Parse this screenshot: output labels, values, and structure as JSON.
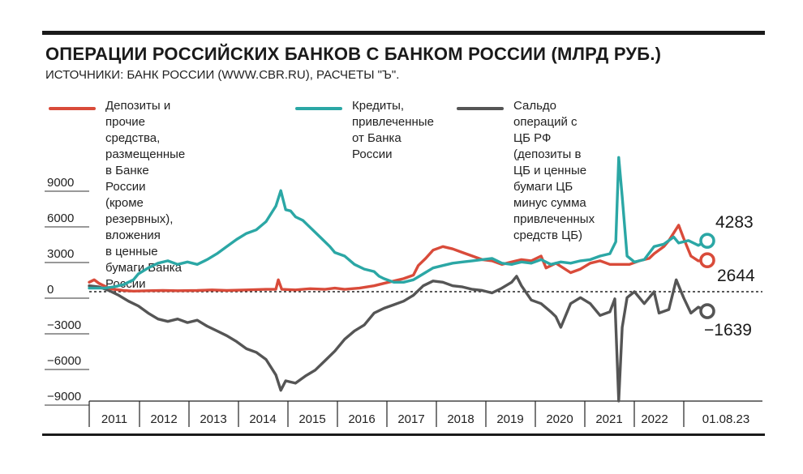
{
  "header": {
    "title": "ОПЕРАЦИИ РОССИЙСКИХ БАНКОВ С БАНКОМ РОССИИ (МЛРД РУБ.)",
    "subtitle": "ИСТОЧНИКИ: БАНК РОССИИ (WWW.CBR.RU), РАСЧЕТЫ \"Ъ\"."
  },
  "chart_data": {
    "type": "line",
    "title": "ОПЕРАЦИИ РОССИЙСКИХ БАНКОВ С БАНКОМ РОССИИ (МЛРД РУБ.)",
    "xlabel": "",
    "ylabel": "",
    "x_range": [
      2011.0,
      2023.583
    ],
    "ylim": [
      -10000,
      10500
    ],
    "y_ticks": [
      9000,
      6000,
      3000,
      0,
      -3000,
      -6000,
      -9000
    ],
    "y_tick_labels": [
      "9000",
      "6000",
      "3000",
      "0",
      "−3000",
      "−6000",
      "−9000"
    ],
    "x_tick_labels": [
      "2011",
      "2012",
      "2013",
      "2014",
      "2015",
      "2016",
      "2017",
      "2018",
      "2019",
      "2020",
      "2021",
      "2022",
      "01.08.23"
    ],
    "grid": false,
    "legend_position": "top",
    "series": [
      {
        "name": "Депозиты и прочие средства, размещенные в Банке России (кроме резервных), вложения в ценные бумаги Банка России",
        "color": "#d94b3a",
        "end_label": "2644",
        "points": [
          [
            2011.0,
            800
          ],
          [
            2011.1,
            1000
          ],
          [
            2011.2,
            700
          ],
          [
            2011.3,
            500
          ],
          [
            2011.4,
            300
          ],
          [
            2011.5,
            200
          ],
          [
            2011.7,
            100
          ],
          [
            2011.9,
            50
          ],
          [
            2012.2,
            80
          ],
          [
            2012.5,
            100
          ],
          [
            2012.8,
            80
          ],
          [
            2013.2,
            100
          ],
          [
            2013.5,
            150
          ],
          [
            2013.8,
            100
          ],
          [
            2014.2,
            150
          ],
          [
            2014.6,
            200
          ],
          [
            2014.8,
            200
          ],
          [
            2014.85,
            1000
          ],
          [
            2014.92,
            200
          ],
          [
            2015.2,
            150
          ],
          [
            2015.5,
            250
          ],
          [
            2015.8,
            200
          ],
          [
            2016.0,
            300
          ],
          [
            2016.2,
            200
          ],
          [
            2016.5,
            300
          ],
          [
            2016.8,
            500
          ],
          [
            2017.0,
            700
          ],
          [
            2017.2,
            900
          ],
          [
            2017.4,
            1100
          ],
          [
            2017.6,
            1400
          ],
          [
            2017.7,
            2200
          ],
          [
            2017.85,
            2800
          ],
          [
            2018.0,
            3500
          ],
          [
            2018.2,
            3800
          ],
          [
            2018.4,
            3600
          ],
          [
            2018.6,
            3300
          ],
          [
            2018.8,
            3000
          ],
          [
            2019.0,
            2700
          ],
          [
            2019.2,
            2600
          ],
          [
            2019.4,
            2300
          ],
          [
            2019.6,
            2500
          ],
          [
            2019.8,
            2700
          ],
          [
            2020.0,
            2600
          ],
          [
            2020.2,
            3000
          ],
          [
            2020.3,
            2000
          ],
          [
            2020.5,
            2400
          ],
          [
            2020.8,
            1600
          ],
          [
            2021.0,
            1900
          ],
          [
            2021.2,
            2400
          ],
          [
            2021.4,
            2600
          ],
          [
            2021.6,
            2300
          ],
          [
            2021.8,
            2300
          ],
          [
            2022.0,
            2300
          ],
          [
            2022.2,
            2600
          ],
          [
            2022.4,
            2800
          ],
          [
            2022.5,
            3200
          ],
          [
            2022.7,
            3800
          ],
          [
            2022.8,
            4300
          ],
          [
            2023.0,
            5600
          ],
          [
            2023.1,
            4500
          ],
          [
            2023.25,
            3000
          ],
          [
            2023.4,
            2600
          ],
          [
            2023.583,
            2644
          ]
        ]
      },
      {
        "name": "Кредиты, привлеченные от Банка России",
        "color": "#2ba7a5",
        "end_label": "4283",
        "points": [
          [
            2011.0,
            300
          ],
          [
            2011.3,
            300
          ],
          [
            2011.5,
            400
          ],
          [
            2011.7,
            600
          ],
          [
            2011.9,
            1000
          ],
          [
            2012.0,
            1500
          ],
          [
            2012.2,
            2000
          ],
          [
            2012.4,
            2400
          ],
          [
            2012.6,
            2600
          ],
          [
            2012.8,
            2300
          ],
          [
            2013.0,
            2500
          ],
          [
            2013.2,
            2300
          ],
          [
            2013.4,
            2700
          ],
          [
            2013.6,
            3200
          ],
          [
            2013.8,
            3800
          ],
          [
            2014.0,
            4400
          ],
          [
            2014.2,
            4900
          ],
          [
            2014.4,
            5200
          ],
          [
            2014.6,
            5900
          ],
          [
            2014.8,
            7200
          ],
          [
            2014.9,
            8500
          ],
          [
            2015.0,
            6900
          ],
          [
            2015.1,
            6800
          ],
          [
            2015.2,
            6300
          ],
          [
            2015.35,
            6000
          ],
          [
            2015.5,
            5400
          ],
          [
            2015.7,
            4600
          ],
          [
            2015.9,
            3800
          ],
          [
            2016.0,
            3300
          ],
          [
            2016.2,
            3000
          ],
          [
            2016.4,
            2300
          ],
          [
            2016.6,
            1900
          ],
          [
            2016.8,
            1700
          ],
          [
            2016.9,
            1300
          ],
          [
            2017.0,
            1100
          ],
          [
            2017.2,
            800
          ],
          [
            2017.4,
            800
          ],
          [
            2017.6,
            1000
          ],
          [
            2017.8,
            1500
          ],
          [
            2018.0,
            2000
          ],
          [
            2018.2,
            2200
          ],
          [
            2018.4,
            2400
          ],
          [
            2018.6,
            2500
          ],
          [
            2018.8,
            2600
          ],
          [
            2019.0,
            2700
          ],
          [
            2019.2,
            2800
          ],
          [
            2019.4,
            2400
          ],
          [
            2019.6,
            2300
          ],
          [
            2019.8,
            2500
          ],
          [
            2020.0,
            2400
          ],
          [
            2020.2,
            2700
          ],
          [
            2020.4,
            2300
          ],
          [
            2020.6,
            2500
          ],
          [
            2020.8,
            2400
          ],
          [
            2021.0,
            2600
          ],
          [
            2021.2,
            2700
          ],
          [
            2021.4,
            3000
          ],
          [
            2021.6,
            3200
          ],
          [
            2021.72,
            4200
          ],
          [
            2021.78,
            11300
          ],
          [
            2021.85,
            8000
          ],
          [
            2021.95,
            3000
          ],
          [
            2022.1,
            2500
          ],
          [
            2022.3,
            2700
          ],
          [
            2022.5,
            3800
          ],
          [
            2022.7,
            4000
          ],
          [
            2022.9,
            4600
          ],
          [
            2023.0,
            4100
          ],
          [
            2023.2,
            4300
          ],
          [
            2023.4,
            3900
          ],
          [
            2023.583,
            4283
          ]
        ]
      },
      {
        "name": "Сальдо операций с ЦБ РФ (депозиты в ЦБ и ценные бумаги ЦБ минус сумма привлеченных средств ЦБ)",
        "color": "#555555",
        "end_label": "−1639",
        "points": [
          [
            2011.0,
            500
          ],
          [
            2011.2,
            400
          ],
          [
            2011.4,
            100
          ],
          [
            2011.6,
            -300
          ],
          [
            2011.8,
            -800
          ],
          [
            2012.0,
            -1200
          ],
          [
            2012.2,
            -1800
          ],
          [
            2012.4,
            -2300
          ],
          [
            2012.6,
            -2500
          ],
          [
            2012.8,
            -2300
          ],
          [
            2013.0,
            -2600
          ],
          [
            2013.2,
            -2400
          ],
          [
            2013.4,
            -2900
          ],
          [
            2013.6,
            -3300
          ],
          [
            2013.8,
            -3700
          ],
          [
            2014.0,
            -4200
          ],
          [
            2014.2,
            -4800
          ],
          [
            2014.4,
            -5100
          ],
          [
            2014.6,
            -5700
          ],
          [
            2014.8,
            -7000
          ],
          [
            2014.9,
            -8300
          ],
          [
            2015.0,
            -7500
          ],
          [
            2015.2,
            -7700
          ],
          [
            2015.4,
            -7100
          ],
          [
            2015.6,
            -6600
          ],
          [
            2015.8,
            -5800
          ],
          [
            2016.0,
            -5000
          ],
          [
            2016.2,
            -4000
          ],
          [
            2016.4,
            -3300
          ],
          [
            2016.6,
            -2800
          ],
          [
            2016.8,
            -1800
          ],
          [
            2017.0,
            -1400
          ],
          [
            2017.2,
            -1100
          ],
          [
            2017.4,
            -800
          ],
          [
            2017.6,
            -300
          ],
          [
            2017.8,
            500
          ],
          [
            2018.0,
            900
          ],
          [
            2018.2,
            800
          ],
          [
            2018.4,
            500
          ],
          [
            2018.6,
            400
          ],
          [
            2018.8,
            200
          ],
          [
            2019.0,
            100
          ],
          [
            2019.2,
            -100
          ],
          [
            2019.4,
            300
          ],
          [
            2019.6,
            800
          ],
          [
            2019.7,
            1300
          ],
          [
            2019.8,
            500
          ],
          [
            2020.0,
            -700
          ],
          [
            2020.2,
            -1000
          ],
          [
            2020.4,
            -1700
          ],
          [
            2020.5,
            -2100
          ],
          [
            2020.6,
            -3000
          ],
          [
            2020.8,
            -1000
          ],
          [
            2021.0,
            -500
          ],
          [
            2021.2,
            -1000
          ],
          [
            2021.4,
            -2000
          ],
          [
            2021.6,
            -1700
          ],
          [
            2021.7,
            -600
          ],
          [
            2021.78,
            -9200
          ],
          [
            2021.85,
            -3000
          ],
          [
            2021.95,
            -500
          ],
          [
            2022.1,
            0
          ],
          [
            2022.3,
            -1000
          ],
          [
            2022.5,
            0
          ],
          [
            2022.6,
            -1800
          ],
          [
            2022.8,
            -1500
          ],
          [
            2022.95,
            1000
          ],
          [
            2023.1,
            -500
          ],
          [
            2023.25,
            -1800
          ],
          [
            2023.4,
            -1300
          ],
          [
            2023.583,
            -1639
          ]
        ]
      }
    ]
  },
  "legend": [
    {
      "name": "Депозиты и прочие средства,\nразмещенные в Банке России\n(кроме резервных), вложения\nв ценные бумаги Банка России",
      "color": "#d94b3a"
    },
    {
      "name": "Кредиты,\nпривлеченные\nот Банка России",
      "color": "#2ba7a5"
    },
    {
      "name": "Сальдо операций с ЦБ РФ\n(депозиты в ЦБ и ценные\nбумаги ЦБ минус сумма\nпривлеченных\nсредств ЦБ)",
      "color": "#555555"
    }
  ]
}
